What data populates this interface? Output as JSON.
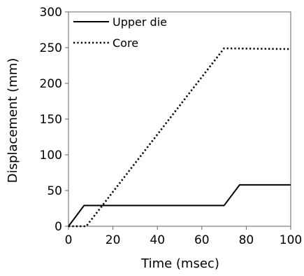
{
  "chart_data": {
    "type": "line",
    "title": "",
    "xlabel": "Time (msec)",
    "ylabel": "Displacement (mm)",
    "xlim": [
      0,
      100
    ],
    "ylim": [
      0,
      300
    ],
    "xticks": [
      "0",
      "20",
      "40",
      "60",
      "80",
      "100"
    ],
    "yticks": [
      "0",
      "50",
      "100",
      "150",
      "200",
      "250",
      "300"
    ],
    "grid": false,
    "legend_position": "top-left",
    "series": [
      {
        "name": "Upper die",
        "style": "solid",
        "x": [
          0,
          7,
          70,
          77,
          100
        ],
        "y": [
          0,
          29,
          29,
          58,
          58
        ]
      },
      {
        "name": "Core",
        "style": "dotted",
        "x": [
          0,
          8,
          70,
          100
        ],
        "y": [
          0,
          0,
          249,
          248
        ]
      }
    ]
  }
}
